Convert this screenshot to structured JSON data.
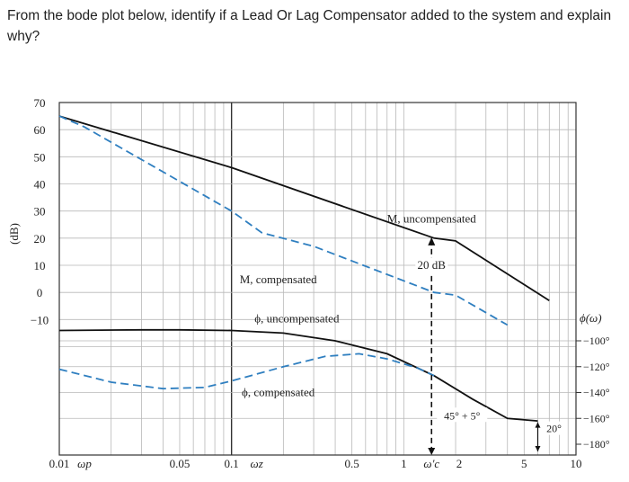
{
  "question": "From the bode plot below, identify if a Lead Or Lag Compensator added to the system and explain why?",
  "chart_data": {
    "type": "line",
    "x_scale": "log",
    "xlim": [
      0.01,
      10
    ],
    "x_ticks": [
      {
        "value": 0.01,
        "label": "0.01"
      },
      {
        "value": 0.05,
        "label": "0.05"
      },
      {
        "value": 0.1,
        "label": "0.1"
      },
      {
        "value": 0.5,
        "label": "0.5"
      },
      {
        "value": 1,
        "label": "1"
      },
      {
        "value": 5,
        "label": "5"
      },
      {
        "value": 10,
        "label": "10"
      }
    ],
    "x_markers": [
      {
        "value": 0.014,
        "label": "ωp"
      },
      {
        "value": 0.14,
        "label": "ωz"
      },
      {
        "value": 1.45,
        "label": "ω'c"
      },
      {
        "value": 2,
        "label": "2"
      }
    ],
    "ylabel": "(dB)",
    "ylim": [
      -20,
      70
    ],
    "y_ticks": [
      70,
      60,
      50,
      40,
      30,
      20,
      10,
      0,
      -10
    ],
    "y2label": "ϕ(ω)",
    "y2lim": [
      -190,
      -60
    ],
    "y2_ticks": [
      -100,
      -120,
      -140,
      -160,
      -180
    ],
    "series": [
      {
        "name": "M, uncompensated",
        "style": "solid",
        "axis": "dB",
        "x": [
          0.01,
          0.1,
          1.5,
          2,
          7
        ],
        "y": [
          65,
          46,
          20,
          19,
          -3
        ]
      },
      {
        "name": "M, compensated",
        "style": "dashed",
        "axis": "dB",
        "x": [
          0.01,
          0.014,
          0.1,
          0.15,
          0.3,
          1.5,
          2,
          4
        ],
        "y": [
          65,
          61,
          30,
          22,
          17,
          0,
          -1,
          -12
        ]
      },
      {
        "name": "ϕ, uncompensated",
        "style": "solid",
        "axis": "phase",
        "x": [
          0.01,
          0.03,
          0.05,
          0.1,
          0.2,
          0.4,
          0.8,
          1.5,
          2.5,
          4,
          6
        ],
        "y": [
          -92,
          -91.5,
          -91.5,
          -92,
          -94,
          -100,
          -110,
          -127,
          -145,
          -160,
          -162
        ]
      },
      {
        "name": "ϕ, compensated",
        "style": "dashed",
        "axis": "phase",
        "x": [
          0.01,
          0.02,
          0.04,
          0.07,
          0.1,
          0.2,
          0.35,
          0.55,
          0.8,
          1.2,
          1.5
        ],
        "y": [
          -122,
          -132,
          -137,
          -136,
          -131,
          -120,
          -112,
          -110,
          -114,
          -121,
          -127
        ]
      }
    ],
    "annotations": {
      "gain_shift": "20 dB",
      "phase_margin": "45° + 5°",
      "phase_extra": "20°"
    },
    "grid": true,
    "colors": {
      "solid": "#111111",
      "dashed": "#2f7fc0",
      "grid": "#b8b8b8"
    }
  }
}
